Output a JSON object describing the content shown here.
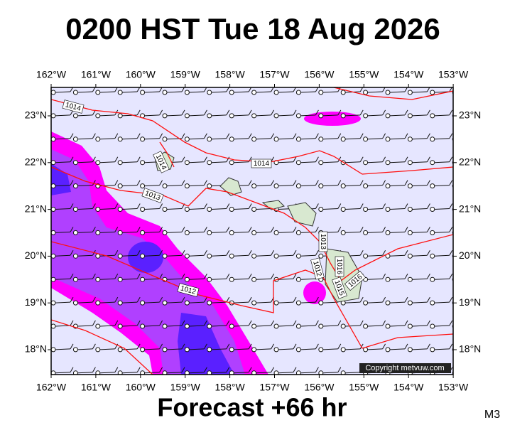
{
  "header": {
    "title": "0200 HST Tue 18 Aug 2026"
  },
  "footer": {
    "forecast": "Forecast +66 hr",
    "model": "M3"
  },
  "map": {
    "lon_labels": [
      "162°W",
      "161°W",
      "160°W",
      "159°W",
      "158°W",
      "157°W",
      "156°W",
      "155°W",
      "154°W",
      "153°W"
    ],
    "lat_labels": [
      "23°N",
      "22°N",
      "21°N",
      "20°N",
      "19°N",
      "18°N"
    ],
    "isobar_labels": [
      "1014",
      "1014",
      "1014",
      "1013",
      "1012",
      "1013",
      "1012",
      "1016",
      "1015",
      "1016"
    ],
    "copyright": "Copyright metvuw.com"
  }
}
